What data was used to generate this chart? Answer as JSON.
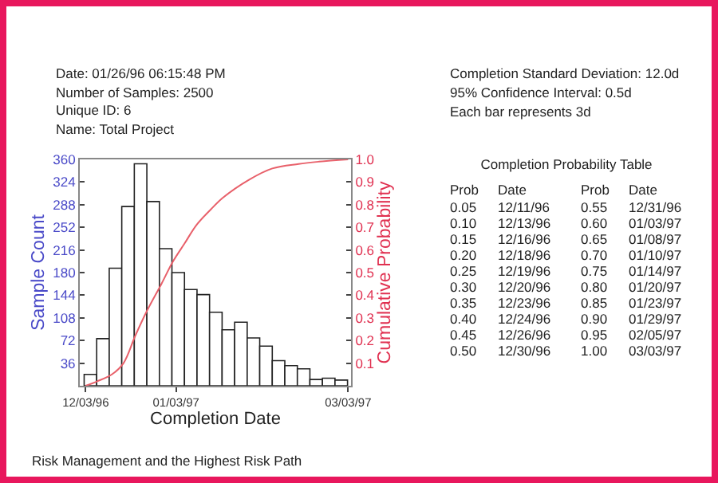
{
  "chart_data": {
    "type": "histogram",
    "xlabel": "Completion Date",
    "ylabel": "Sample Count",
    "y2label": "Cumulative Probability",
    "bins": [
      "1996-12-02T12:00",
      "1996-12-06T19:12",
      "1996-12-11T02:24",
      "1996-12-15T09:36",
      "1996-12-19T16:48",
      "1996-12-24T00:00",
      "1996-12-28T07:12",
      "1997-01-01T14:24",
      "1997-01-05T21:36",
      "1997-01-10T04:48",
      "1997-01-14T12:00",
      "1997-01-18T19:12",
      "1997-01-23T02:24",
      "1997-01-27T09:36",
      "1997-01-31T16:48",
      "1997-02-05T00:00",
      "1997-02-09T07:12",
      "1997-02-13T14:24",
      "1997-02-17T21:36",
      "1997-02-22T04:48",
      "1997-02-26T12:00",
      "1997-03-02T19:12"
    ],
    "series": [
      {
        "color": "#ffffff",
        "values": [
          18,
          75,
          187,
          285,
          353,
          293,
          218,
          180,
          153,
          145,
          117,
          89,
          101,
          76,
          63,
          40,
          32,
          27,
          10,
          12,
          9
        ]
      },
      {
        "type": "line",
        "axis": "y2",
        "color": "#e8606a",
        "x": [
          "1996-12-03",
          "1996-12-07",
          "1996-12-12",
          "1996-12-16",
          "1996-12-20",
          "1996-12-24",
          "1996-12-29",
          "1997-01-02",
          "1997-01-06",
          "1997-01-10",
          "1997-01-15",
          "1997-01-19",
          "1997-01-28",
          "1997-02-05",
          "1997-02-14",
          "1997-02-21",
          "1997-03-03"
        ],
        "values": [
          0,
          0.02,
          0.05,
          0.1,
          0.22,
          0.33,
          0.45,
          0.55,
          0.63,
          0.71,
          0.78,
          0.83,
          0.91,
          0.96,
          0.98,
          0.99,
          1.0
        ]
      }
    ],
    "xlim": [
      "1996-12-01",
      "1997-03-04"
    ],
    "xticks": [
      {
        "value": "1996-12-03",
        "label": "12/03/96"
      },
      {
        "value": "1997-01-03",
        "label": "01/03/97"
      },
      {
        "value": "1997-03-03",
        "label": "03/03/97"
      }
    ],
    "ylim": [
      0,
      360
    ],
    "yticks": [
      36,
      72,
      108,
      144,
      180,
      216,
      252,
      288,
      324,
      360
    ],
    "y2lim": [
      0,
      1
    ],
    "y2ticks": [
      {
        "value": 0.1,
        "label": "0.1"
      },
      {
        "value": 0.2,
        "label": "0.2"
      },
      {
        "value": 0.3,
        "label": "0.3"
      },
      {
        "value": 0.4,
        "label": "0.4"
      },
      {
        "value": 0.5,
        "label": "0.5"
      },
      {
        "value": 0.6,
        "label": "0.6"
      },
      {
        "value": 0.7,
        "label": "0.7"
      },
      {
        "value": 0.8,
        "label": "0.8"
      },
      {
        "value": 0.9,
        "label": "0.9"
      },
      {
        "value": 1,
        "label": "1.0"
      }
    ],
    "grid": false,
    "annotations": [
      "Date: 01/26/96 06:15:48 PM",
      "Number of Samples: 2500",
      "Unique ID: 6",
      "Name: Total Project",
      "Completion Standard Deviation: 12.0d",
      "95% Confidence Interval: 0.5d",
      "Each bar represents 3d",
      "Completion Probability Table",
      "Prob",
      "Date",
      "Prob",
      "Date",
      "0.05",
      "12/11/96",
      "0.55",
      "12/31/96",
      "0.10",
      "12/13/96",
      "0.60",
      "01/03/97",
      "0.15",
      "12/16/96",
      "0.65",
      "01/08/97",
      "0.20",
      "12/18/96",
      "0.70",
      "01/10/97",
      "0.25",
      "12/19/96",
      "0.75",
      "01/14/97",
      "0.30",
      "12/20/96",
      "0.80",
      "01/20/97",
      "0.35",
      "12/23/96",
      "0.85",
      "01/23/97",
      "0.40",
      "12/24/96",
      "0.90",
      "01/29/97",
      "0.45",
      "12/26/96",
      "0.95",
      "02/05/97",
      "0.50",
      "12/30/96",
      "1.00",
      "03/03/97",
      "Risk Management and the Highest Risk Path"
    ]
  }
}
